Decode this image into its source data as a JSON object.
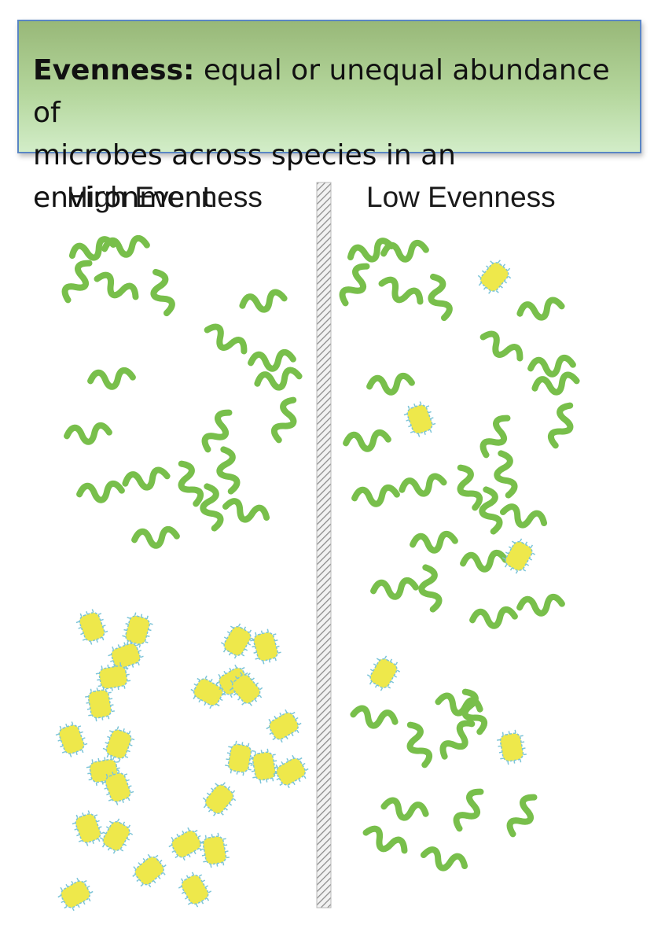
{
  "title": {
    "term": "Evenness:",
    "definition_line1": " equal or unequal abundance of",
    "definition_line2": "microbes across species in an environment"
  },
  "panels": {
    "left": {
      "heading": "High Evenness"
    },
    "right": {
      "heading": "Low Evenness"
    }
  },
  "colors": {
    "rod_microbe": "#78bf4b",
    "coccus_microbe": "#eee84b",
    "coccus_border": "#7cc4d8",
    "divider": "#9a9a9a",
    "title_border": "#5a86c4"
  },
  "counts": {
    "left_rods": 25,
    "left_cocci": 32,
    "right_rods": 38,
    "right_cocci": 6
  }
}
